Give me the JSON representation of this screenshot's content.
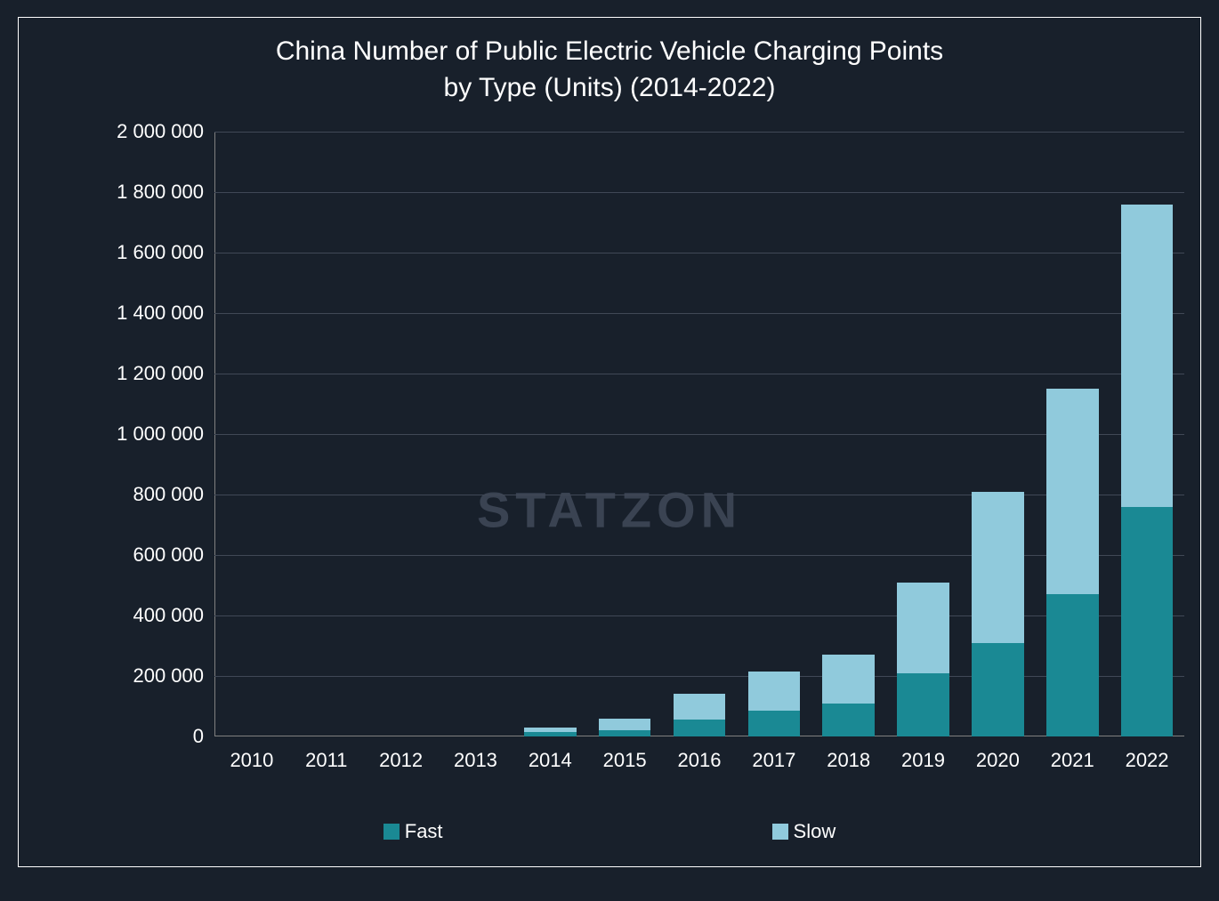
{
  "chart": {
    "type": "stacked-bar",
    "title_line1": "China Number of Public Electric Vehicle Charging Points",
    "title_line2": "by Type (Units) (2014-2022)",
    "title_fontsize": 30,
    "background_color": "#18202b",
    "frame_border_color": "#ffffff",
    "axis_color": "#808080",
    "grid_color": "#404856",
    "text_color": "#ffffff",
    "label_fontsize": 22,
    "tick_fontsize": 22,
    "watermark_text": "STATZON",
    "watermark_color": "#3a4352",
    "watermark_fontsize": 56,
    "categories": [
      "2010",
      "2011",
      "2012",
      "2013",
      "2014",
      "2015",
      "2016",
      "2017",
      "2018",
      "2019",
      "2020",
      "2021",
      "2022"
    ],
    "series": [
      {
        "name": "Fast",
        "color": "#1a8994",
        "values": [
          0,
          0,
          0,
          0,
          15000,
          20000,
          55000,
          85000,
          110000,
          210000,
          310000,
          470000,
          760000
        ]
      },
      {
        "name": "Slow",
        "color": "#90cadc",
        "values": [
          0,
          0,
          0,
          0,
          15000,
          40000,
          85000,
          130000,
          160000,
          300000,
          500000,
          680000,
          1000000
        ]
      }
    ],
    "ylim": [
      0,
      2000000
    ],
    "y_ticks": [
      0,
      200000,
      400000,
      600000,
      800000,
      1000000,
      1200000,
      1400000,
      1600000,
      1800000,
      2000000
    ],
    "y_tick_labels": [
      "0",
      "200 000",
      "400 000",
      "600 000",
      "800 000",
      "1 000 000",
      "1 200 000",
      "1 400 000",
      "1 600 000",
      "1 800 000",
      "2 000 000"
    ],
    "bar_width_ratio": 0.7,
    "legend_fontsize": 22
  }
}
